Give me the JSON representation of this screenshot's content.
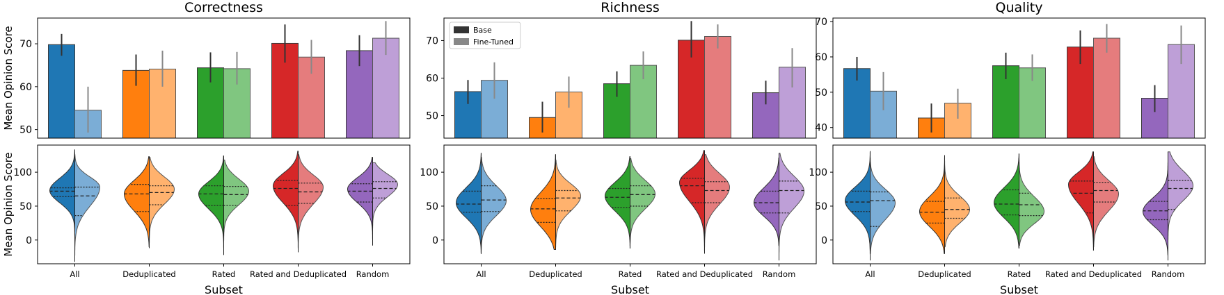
{
  "figure": {
    "y_axis_label": "Mean Opinion Score",
    "x_axis_label": "Subset",
    "categories": [
      "All",
      "Deduplicated",
      "Rated",
      "Rated and Deduplicated",
      "Random"
    ],
    "legend": [
      {
        "label": "Base",
        "color": "#333333"
      },
      {
        "label": "Fine-Tuned",
        "color": "#888888"
      }
    ],
    "colors": {
      "base": [
        "#1f77b4",
        "#ff7f0e",
        "#2ca02c",
        "#d62728",
        "#9467bd"
      ],
      "finetuned": [
        "#7badd6",
        "#ffb26e",
        "#80c680",
        "#e57c7d",
        "#be9fd7"
      ]
    }
  },
  "chart_data": [
    {
      "title": "Correctness",
      "type": "bar",
      "ylim": [
        48,
        76
      ],
      "yticks": [
        "50",
        "60",
        "70"
      ],
      "series": [
        {
          "name": "Base",
          "values": [
            69.8,
            63.8,
            64.4,
            70.1,
            68.4
          ],
          "err_low": [
            67.2,
            60.2,
            61.0,
            65.6,
            64.8
          ],
          "err_high": [
            72.3,
            67.5,
            68.0,
            74.5,
            72.0
          ]
        },
        {
          "name": "Fine-Tuned",
          "values": [
            54.5,
            64.1,
            64.2,
            66.9,
            71.3
          ],
          "err_low": [
            49.3,
            60.0,
            60.5,
            63.0,
            67.4
          ],
          "err_high": [
            60.0,
            68.4,
            68.1,
            70.9,
            75.3
          ]
        }
      ]
    },
    {
      "title": "Richness",
      "type": "bar",
      "ylim": [
        44,
        76
      ],
      "yticks": [
        "50",
        "60",
        "70"
      ],
      "show_legend": true,
      "series": [
        {
          "name": "Base",
          "values": [
            56.4,
            49.5,
            58.5,
            70.1,
            56.1
          ],
          "err_low": [
            53.1,
            45.5,
            55.0,
            65.5,
            53.0
          ],
          "err_high": [
            59.5,
            53.7,
            61.8,
            75.2,
            59.3
          ]
        },
        {
          "name": "Fine-Tuned",
          "values": [
            59.4,
            56.3,
            63.4,
            71.1,
            62.9
          ],
          "err_low": [
            54.5,
            52.1,
            59.7,
            67.9,
            57.5
          ],
          "err_high": [
            64.2,
            60.4,
            67.1,
            74.3,
            68.0
          ]
        }
      ]
    },
    {
      "title": "Quality",
      "type": "bar",
      "ylim": [
        37,
        71
      ],
      "yticks": [
        "40",
        "50",
        "60",
        "70"
      ],
      "series": [
        {
          "name": "Base",
          "values": [
            56.7,
            42.7,
            57.5,
            62.8,
            48.3
          ],
          "err_low": [
            53.3,
            38.6,
            53.7,
            58.0,
            44.4
          ],
          "err_high": [
            60.0,
            46.8,
            61.2,
            67.5,
            52.0
          ]
        },
        {
          "name": "Fine-Tuned",
          "values": [
            50.3,
            46.9,
            56.9,
            65.3,
            63.5
          ],
          "err_low": [
            44.9,
            42.5,
            53.2,
            61.2,
            58.0
          ],
          "err_high": [
            55.7,
            51.0,
            60.7,
            69.3,
            68.9
          ]
        }
      ]
    },
    {
      "title": "Correctness",
      "type": "violin",
      "ylim": [
        -35,
        140
      ],
      "yticks": [
        "0",
        "50",
        "100"
      ],
      "base": [
        {
          "min": -30,
          "max": 133,
          "mode": 73,
          "sd_low": 18,
          "sd_high": 18,
          "q1": 64,
          "median": 72,
          "q3": 77
        },
        {
          "min": -10,
          "max": 123,
          "mode": 68,
          "sd_low": 25,
          "sd_high": 20,
          "q1": 42,
          "median": 68,
          "q3": 82
        },
        {
          "min": -22,
          "max": 124,
          "mode": 68,
          "sd_low": 22,
          "sd_high": 18,
          "q1": 51,
          "median": 68,
          "q3": 80
        },
        {
          "min": -18,
          "max": 131,
          "mode": 80,
          "sd_low": 25,
          "sd_high": 18,
          "q1": 51,
          "median": 76,
          "q3": 88
        },
        {
          "min": -8,
          "max": 122,
          "mode": 75,
          "sd_low": 20,
          "sd_high": 17,
          "q1": 56,
          "median": 72,
          "q3": 83
        }
      ],
      "finetuned": [
        {
          "min": -32,
          "max": 126,
          "mode": 78,
          "sd_low": 28,
          "sd_high": 15,
          "q1": 36,
          "median": 65,
          "q3": 78
        },
        {
          "min": -12,
          "max": 122,
          "mode": 75,
          "sd_low": 22,
          "sd_high": 18,
          "q1": 52,
          "median": 70,
          "q3": 80
        },
        {
          "min": -8,
          "max": 118,
          "mode": 72,
          "sd_low": 20,
          "sd_high": 18,
          "q1": 51,
          "median": 67,
          "q3": 79
        },
        {
          "min": -12,
          "max": 126,
          "mode": 78,
          "sd_low": 25,
          "sd_high": 18,
          "q1": 54,
          "median": 71,
          "q3": 84
        },
        {
          "min": -8,
          "max": 114,
          "mode": 82,
          "sd_low": 18,
          "sd_high": 15,
          "q1": 62,
          "median": 76,
          "q3": 86
        }
      ]
    },
    {
      "title": "Richness",
      "type": "violin",
      "ylim": [
        -35,
        140
      ],
      "yticks": [
        "0",
        "50",
        "100"
      ],
      "base": [
        {
          "min": -20,
          "max": 128,
          "mode": 55,
          "sd_low": 22,
          "sd_high": 22,
          "q1": 41,
          "median": 53,
          "q3": 72
        },
        {
          "min": -14,
          "max": 126,
          "mode": 45,
          "sd_low": 25,
          "sd_high": 25,
          "q1": 26,
          "median": 46,
          "q3": 61
        },
        {
          "min": -12,
          "max": 123,
          "mode": 65,
          "sd_low": 22,
          "sd_high": 20,
          "q1": 48,
          "median": 63,
          "q3": 76
        },
        {
          "min": -20,
          "max": 132,
          "mode": 85,
          "sd_low": 28,
          "sd_high": 18,
          "q1": 55,
          "median": 80,
          "q3": 91
        },
        {
          "min": -8,
          "max": 121,
          "mode": 55,
          "sd_low": 20,
          "sd_high": 22,
          "q1": 40,
          "median": 55,
          "q3": 72
        }
      ],
      "finetuned": [
        {
          "min": -15,
          "max": 122,
          "mode": 58,
          "sd_low": 22,
          "sd_high": 22,
          "q1": 42,
          "median": 59,
          "q3": 80
        },
        {
          "min": -10,
          "max": 118,
          "mode": 65,
          "sd_low": 22,
          "sd_high": 18,
          "q1": 43,
          "median": 62,
          "q3": 73
        },
        {
          "min": -5,
          "max": 120,
          "mode": 68,
          "sd_low": 22,
          "sd_high": 20,
          "q1": 50,
          "median": 67,
          "q3": 80
        },
        {
          "min": -10,
          "max": 126,
          "mode": 78,
          "sd_low": 25,
          "sd_high": 20,
          "q1": 55,
          "median": 73,
          "q3": 86
        },
        {
          "min": -30,
          "max": 128,
          "mode": 72,
          "sd_low": 25,
          "sd_high": 22,
          "q1": 40,
          "median": 73,
          "q3": 87
        }
      ]
    },
    {
      "title": "Quality",
      "type": "violin",
      "ylim": [
        -35,
        140
      ],
      "yticks": [
        "0",
        "50",
        "100"
      ],
      "base": [
        {
          "min": -30,
          "max": 131,
          "mode": 58,
          "sd_low": 22,
          "sd_high": 20,
          "q1": 42,
          "median": 56,
          "q3": 72
        },
        {
          "min": -20,
          "max": 125,
          "mode": 42,
          "sd_low": 22,
          "sd_high": 22,
          "q1": 25,
          "median": 41,
          "q3": 57
        },
        {
          "min": -12,
          "max": 127,
          "mode": 55,
          "sd_low": 22,
          "sd_high": 22,
          "q1": 37,
          "median": 53,
          "q3": 74
        },
        {
          "min": -15,
          "max": 130,
          "mode": 82,
          "sd_low": 28,
          "sd_high": 18,
          "q1": 40,
          "median": 69,
          "q3": 87
        },
        {
          "min": -22,
          "max": 120,
          "mode": 42,
          "sd_low": 20,
          "sd_high": 20,
          "q1": 30,
          "median": 43,
          "q3": 57
        }
      ],
      "finetuned": [
        {
          "min": -20,
          "max": 121,
          "mode": 55,
          "sd_low": 25,
          "sd_high": 20,
          "q1": 20,
          "median": 58,
          "q3": 71
        },
        {
          "min": -10,
          "max": 118,
          "mode": 45,
          "sd_low": 20,
          "sd_high": 20,
          "q1": 32,
          "median": 45,
          "q3": 62
        },
        {
          "min": -8,
          "max": 118,
          "mode": 42,
          "sd_low": 18,
          "sd_high": 22,
          "q1": 36,
          "median": 52,
          "q3": 69
        },
        {
          "min": -10,
          "max": 123,
          "mode": 68,
          "sd_low": 25,
          "sd_high": 20,
          "q1": 56,
          "median": 73,
          "q3": 85
        },
        {
          "min": -30,
          "max": 130,
          "mode": 80,
          "sd_low": 22,
          "sd_high": 22,
          "q1": 45,
          "median": 76,
          "q3": 88
        }
      ]
    }
  ]
}
